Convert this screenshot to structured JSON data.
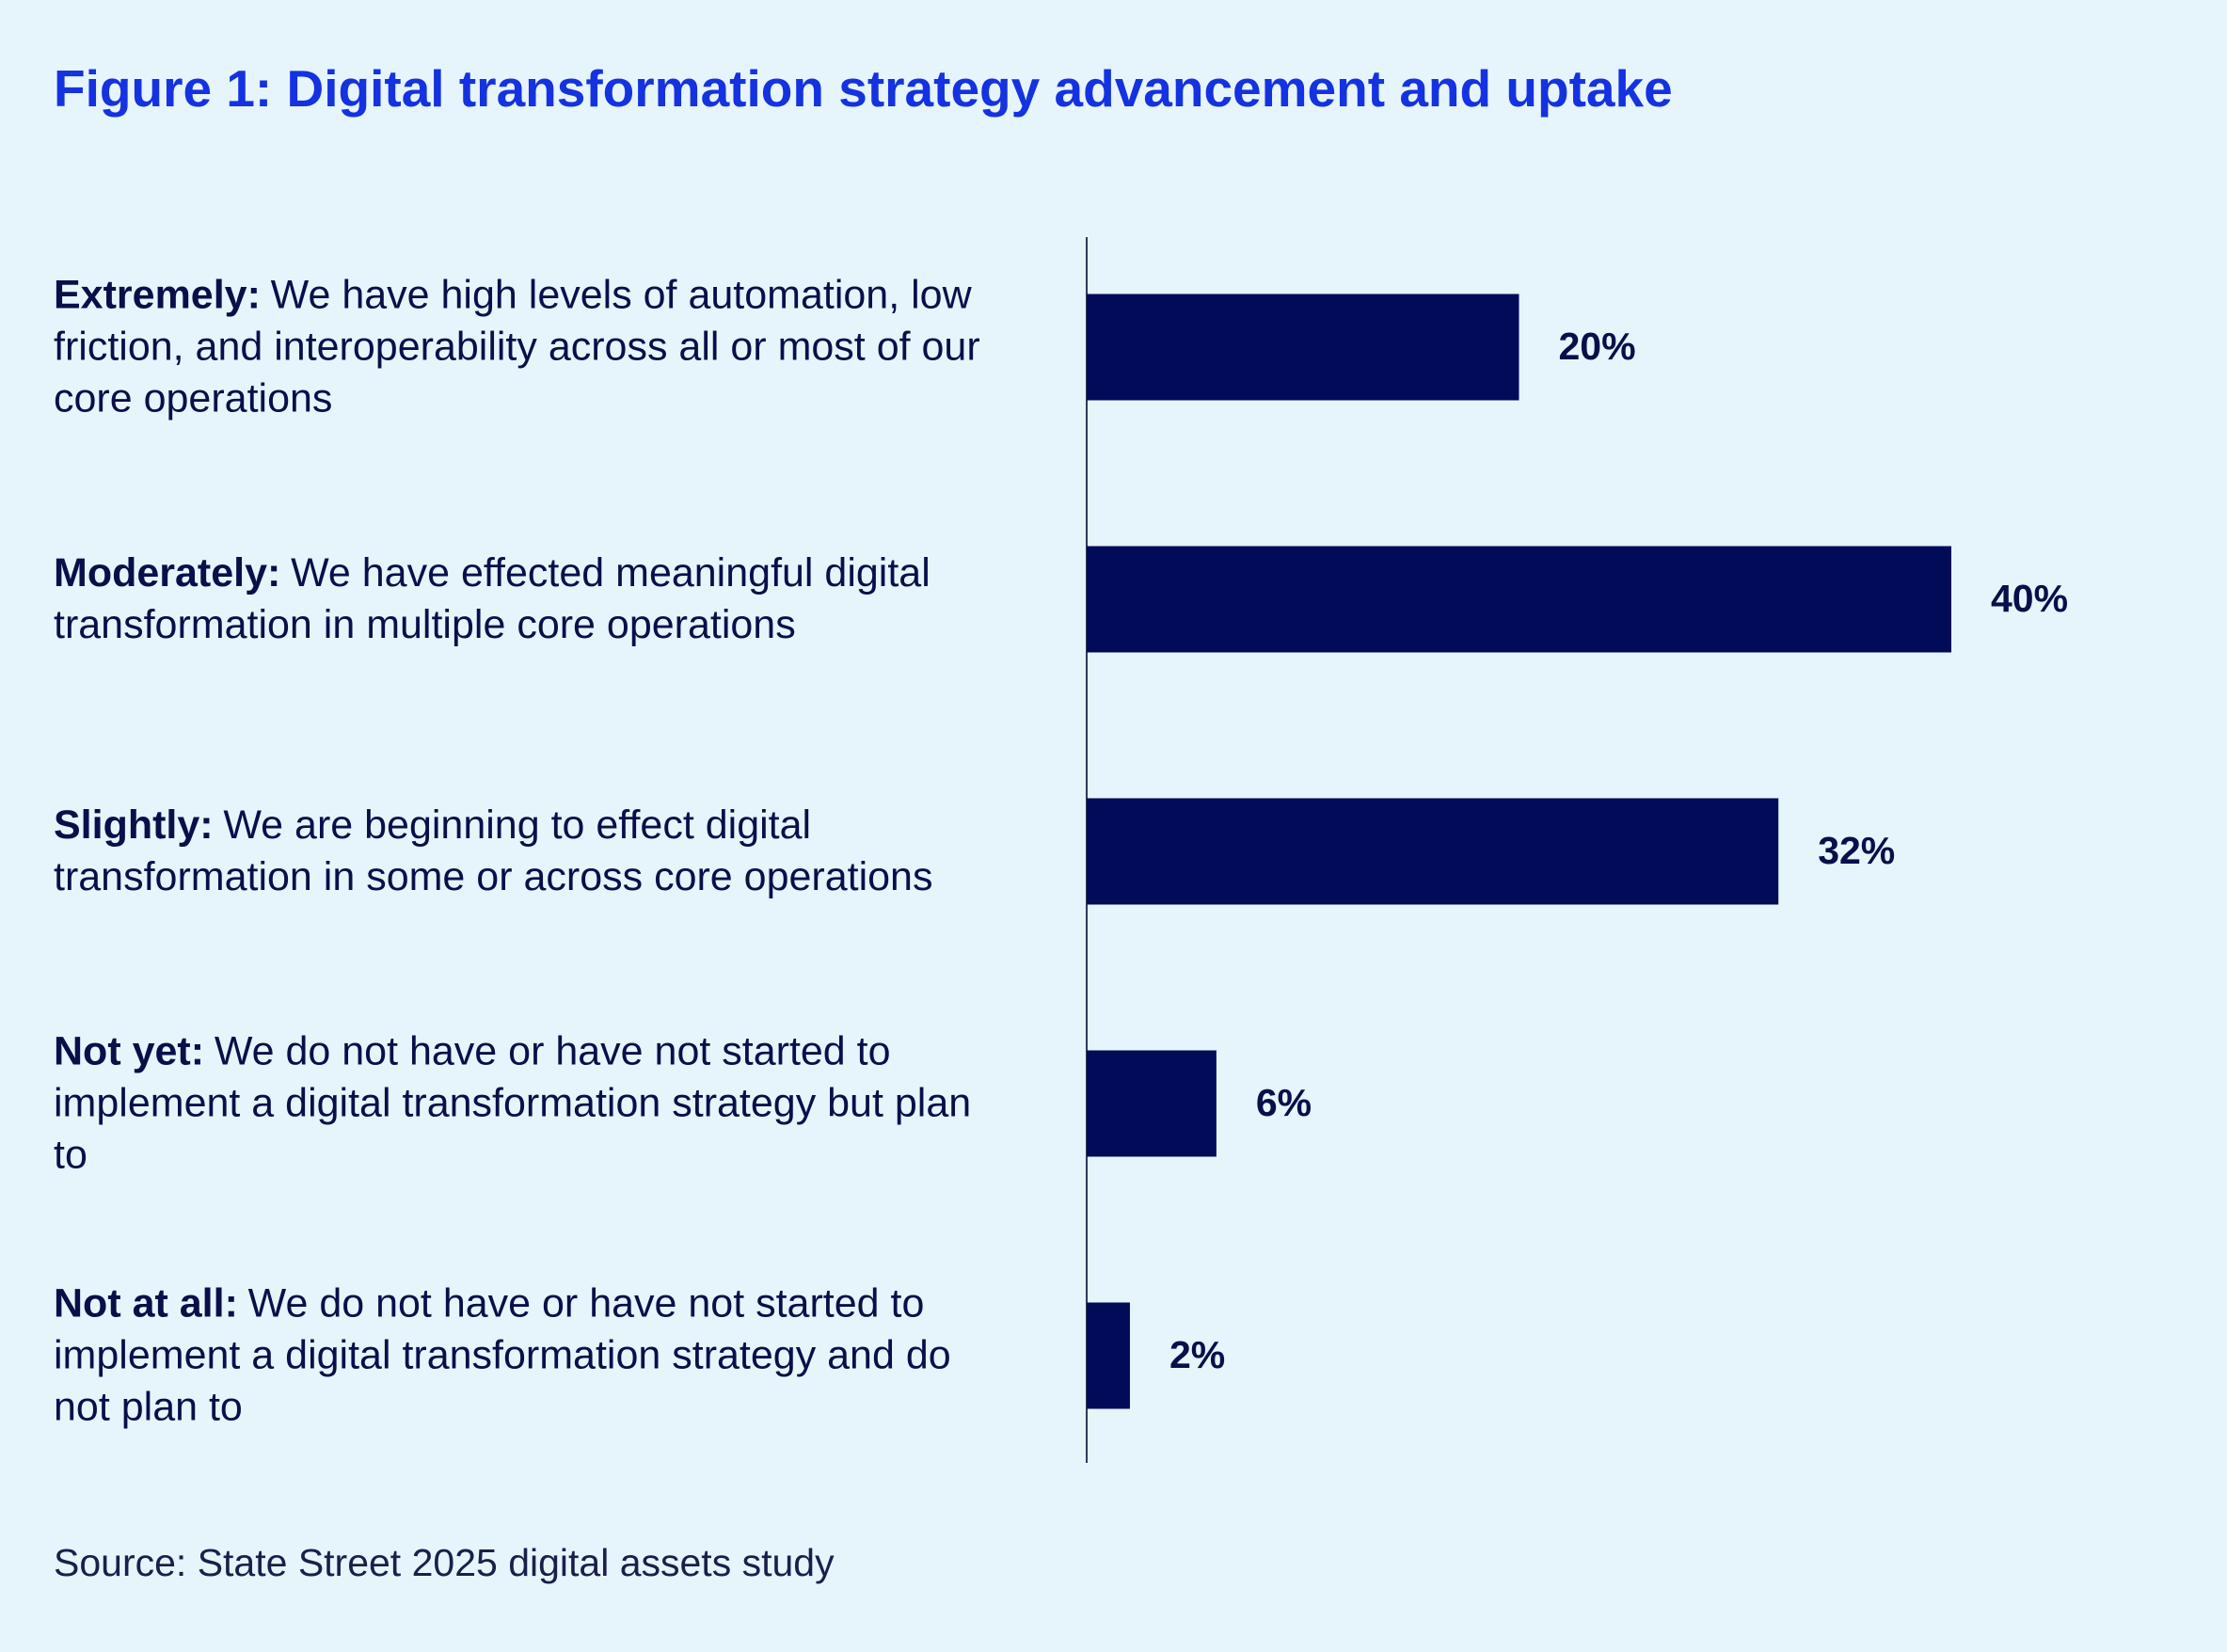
{
  "chart_data": {
    "type": "bar",
    "orientation": "horizontal",
    "title": "Figure 1: Digital transformation strategy advancement and uptake",
    "categories": [
      "Extremely:",
      "Moderately:",
      "Slightly:",
      "Not yet:",
      "Not at all:"
    ],
    "descriptions": [
      "We have high levels of automation, low friction, and interoperability across all or most of our core operations",
      "We have effected meaningful digital transformation in multiple core operations",
      "We are beginning to effect digital transformation in some or across core operations",
      "We do not have or have not started to implement a digital transformation strategy but plan to",
      "We do not have or have not started to implement a digital transformation strategy and do not plan to"
    ],
    "values": [
      20,
      40,
      32,
      6,
      2
    ],
    "value_labels": [
      "20%",
      "40%",
      "32%",
      "6%",
      "2%"
    ],
    "color": "#020b57",
    "xlim": [
      0,
      40
    ],
    "source": "Source: State Street 2025 digital assets study"
  }
}
